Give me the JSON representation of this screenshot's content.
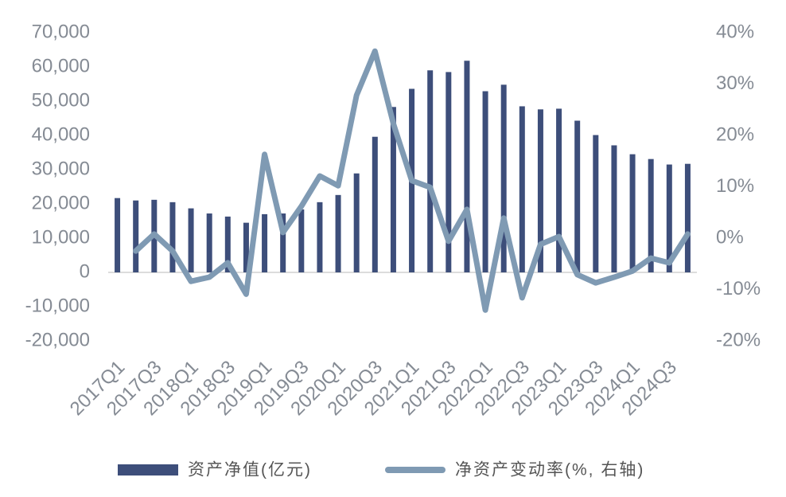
{
  "chart_data": {
    "type": "bar-line",
    "categories": [
      "2017Q1",
      null,
      "2017Q3",
      null,
      "2018Q1",
      null,
      "2018Q3",
      null,
      "2019Q1",
      null,
      "2019Q3",
      null,
      "2020Q1",
      null,
      "2020Q3",
      null,
      "2021Q1",
      null,
      "2021Q3",
      null,
      "2022Q1",
      null,
      "2022Q3",
      null,
      "2023Q1",
      null,
      "2023Q3",
      null,
      "2024Q1",
      null,
      "2024Q3",
      null
    ],
    "series": [
      {
        "name": "资产净值(亿元)",
        "type": "bar",
        "color": "#3d4e7a",
        "values": [
          21700,
          21000,
          21200,
          20500,
          18700,
          17200,
          16300,
          14500,
          17000,
          17200,
          18400,
          20500,
          22600,
          28900,
          39600,
          48300,
          53600,
          59000,
          58500,
          61800,
          52900,
          54800,
          48500,
          47600,
          47800,
          44300,
          40100,
          37100,
          34500,
          33100,
          31500,
          31700
        ]
      },
      {
        "name": "净资产变动率(%, 右轴)",
        "type": "line",
        "axis": "y2",
        "color": "#7f9ab3",
        "values": [
          null,
          -2.5,
          0.8,
          -2.5,
          -8.4,
          -7.6,
          -4.8,
          -10.9,
          16.3,
          1.1,
          6.2,
          12.1,
          10.2,
          27.8,
          36.4,
          22.3,
          11.2,
          9.9,
          -0.6,
          5.6,
          -14.0,
          3.9,
          -11.6,
          -1.2,
          0.3,
          -7.1,
          -8.7,
          -7.6,
          -6.4,
          -3.9,
          -4.8,
          0.8
        ]
      }
    ],
    "ylim": [
      -20000,
      70000
    ],
    "yticks": [
      {
        "value": -20000,
        "label": "-20,000"
      },
      {
        "value": -10000,
        "label": "-10,000"
      },
      0,
      {
        "value": 10000,
        "label": "10,000"
      },
      {
        "value": 20000,
        "label": "20,000"
      },
      {
        "value": 30000,
        "label": "30,000"
      },
      {
        "value": 40000,
        "label": "40,000"
      },
      {
        "value": 50000,
        "label": "50,000"
      },
      {
        "value": 60000,
        "label": "60,000"
      },
      {
        "value": 70000,
        "label": "70,000"
      }
    ],
    "y2lim": [
      -20,
      40
    ],
    "y2ticks": [
      {
        "value": -20,
        "label": "-20%"
      },
      {
        "value": -10,
        "label": "-10%"
      },
      {
        "value": 0,
        "label": "0%"
      },
      {
        "value": 10,
        "label": "10%"
      },
      {
        "value": 20,
        "label": "20%"
      },
      {
        "value": 30,
        "label": "30%"
      },
      {
        "value": 40,
        "label": "40%"
      }
    ],
    "grid": false,
    "legend": "bottom"
  }
}
